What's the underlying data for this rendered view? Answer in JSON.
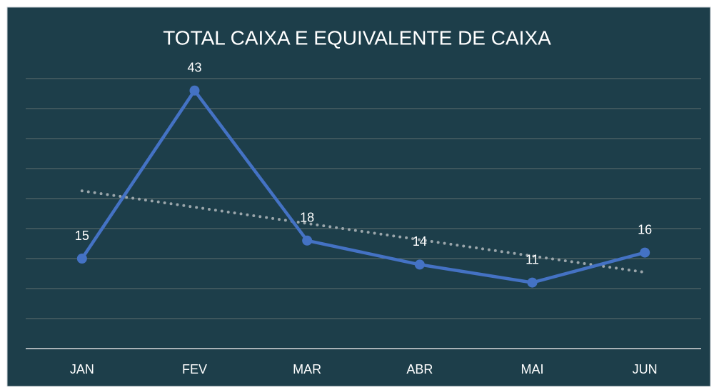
{
  "chart_data": {
    "type": "line",
    "title": "TOTAL CAIXA E EQUIVALENTE DE CAIXA",
    "categories": [
      "JAN",
      "FEV",
      "MAR",
      "ABR",
      "MAI",
      "JUN"
    ],
    "values": [
      15,
      43,
      18,
      14,
      11,
      16
    ],
    "color": "#4472c4",
    "ylim": [
      0,
      45
    ],
    "yticks": [
      0,
      5,
      10,
      15,
      20,
      25,
      30,
      35,
      40,
      45
    ],
    "grid": true,
    "trendline": true,
    "trendline_color": "#9aa5aa"
  }
}
